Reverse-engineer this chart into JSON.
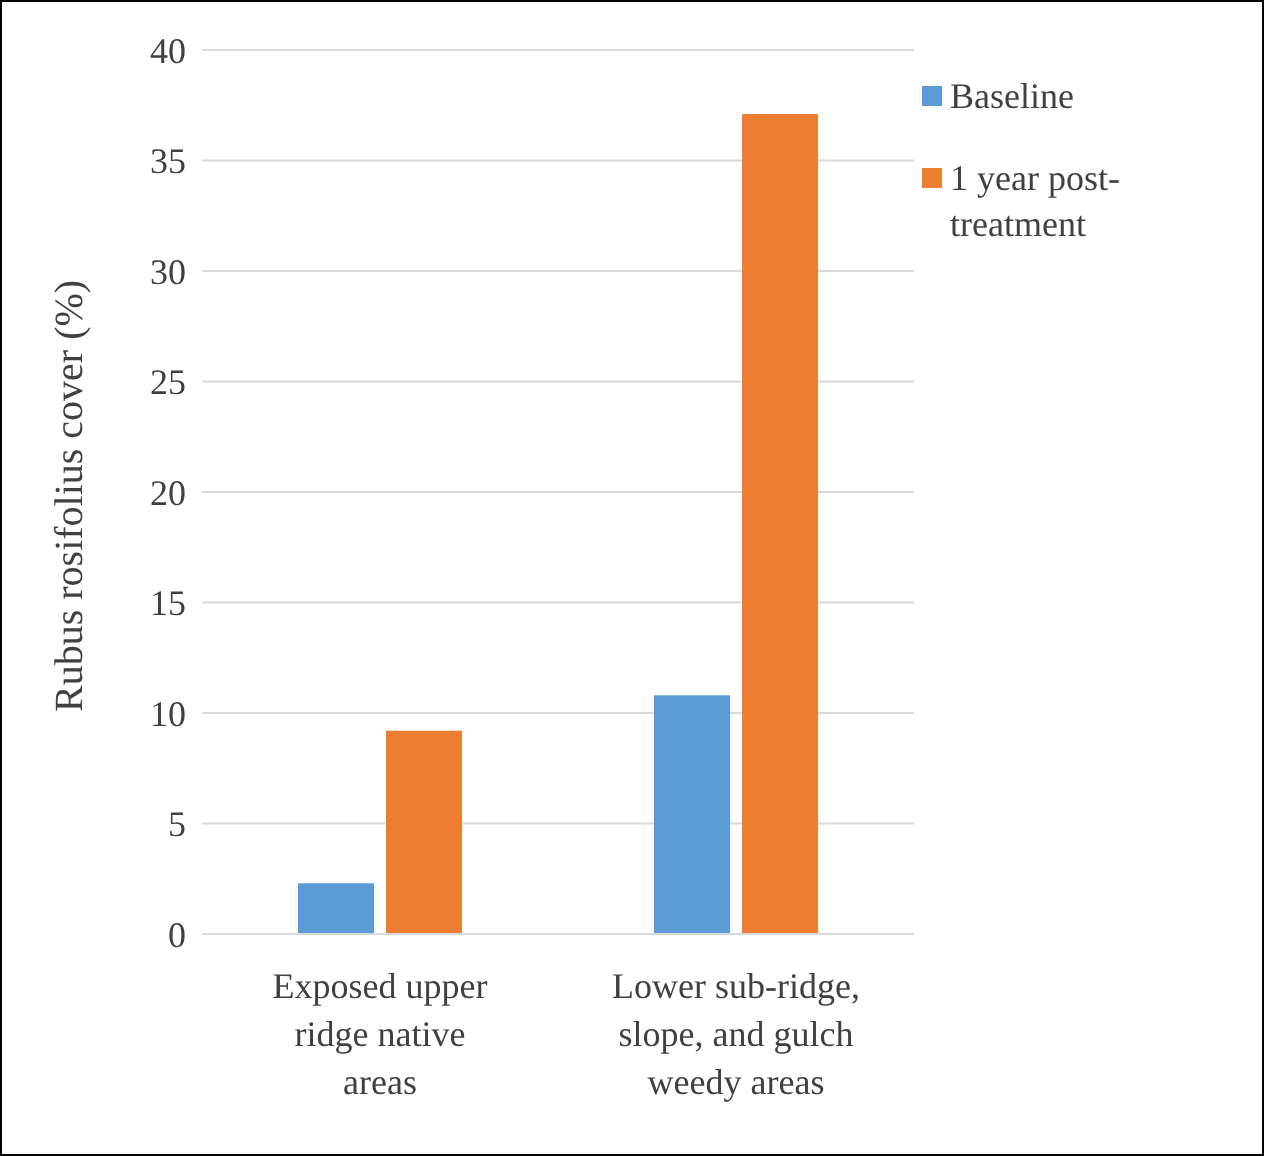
{
  "chart_data": {
    "type": "bar",
    "ylabel": "Rubus rosifolius cover (%)",
    "categories": [
      "Exposed upper ridge native areas",
      "Lower sub-ridge, slope, and gulch weedy areas"
    ],
    "series": [
      {
        "name": "Baseline",
        "color": "#5b9bd5",
        "values": [
          2.3,
          10.8
        ]
      },
      {
        "name": "1 year post-treatment",
        "color": "#ed7d31",
        "values": [
          9.2,
          37.1
        ]
      }
    ],
    "ylim": [
      0,
      40
    ],
    "yticks": [
      0,
      5,
      10,
      15,
      20,
      25,
      30,
      35,
      40
    ],
    "grid": "y",
    "legend": "top right"
  }
}
